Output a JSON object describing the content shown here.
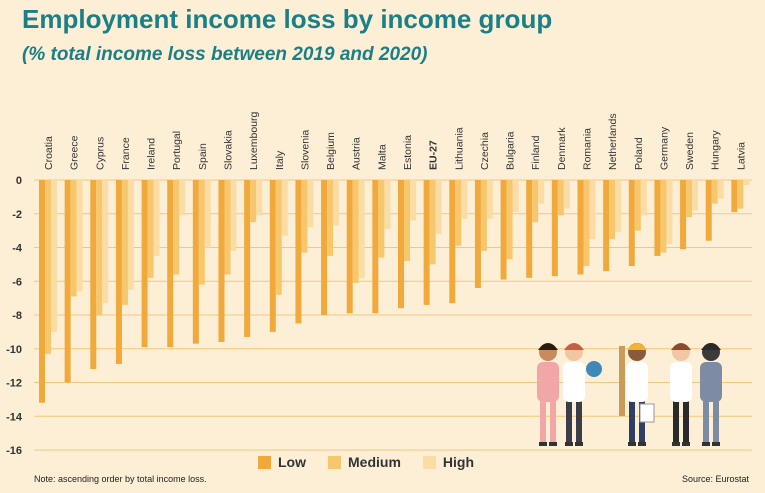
{
  "header": {
    "title": "Employment income loss by income group",
    "subtitle": "(% total income loss between 2019 and 2020)"
  },
  "footer": {
    "note": "Note: ascending order by total income loss.",
    "source": "Source: Eurostat"
  },
  "colors": {
    "low": "#f2a93b",
    "medium": "#f7c76d",
    "high": "#fbdca5",
    "grid": "#f3c77e",
    "axis_text": "#333333"
  },
  "chart_data": {
    "type": "bar",
    "title": "Employment income loss by income group",
    "subtitle": "(% total income loss between 2019 and 2020)",
    "xlabel": "",
    "ylabel": "",
    "ylim": [
      -16,
      0
    ],
    "yticks": [
      0,
      -2,
      -4,
      -6,
      -8,
      -10,
      -12,
      -14,
      -16
    ],
    "grid": true,
    "legend_position": "bottom",
    "categories": [
      "Croatia",
      "Greece",
      "Cyprus",
      "France",
      "Ireland",
      "Portugal",
      "Spain",
      "Slovakia",
      "Luxembourg",
      "Italy",
      "Slovenia",
      "Belgium",
      "Austria",
      "Malta",
      "Estonia",
      "EU-27",
      "Lithuania",
      "Czechia",
      "Bulgaria",
      "Finland",
      "Denmark",
      "Romania",
      "Netherlands",
      "Poland",
      "Germany",
      "Sweden",
      "Hungary",
      "Latvia"
    ],
    "series": [
      {
        "name": "Low",
        "values": [
          -13.2,
          -12.0,
          -11.2,
          -10.9,
          -9.9,
          -9.9,
          -9.7,
          -9.6,
          -9.3,
          -9.0,
          -8.5,
          -8.0,
          -7.9,
          -7.9,
          -7.6,
          -7.4,
          -7.3,
          -6.4,
          -5.9,
          -5.8,
          -5.7,
          -5.6,
          -5.4,
          -5.1,
          -4.5,
          -4.1,
          -3.6,
          -1.9
        ]
      },
      {
        "name": "Medium",
        "values": [
          -10.3,
          -6.9,
          -8.0,
          -7.4,
          -5.8,
          -5.6,
          -6.2,
          -5.6,
          -2.5,
          -6.8,
          -4.3,
          -4.5,
          -6.1,
          -4.6,
          -4.8,
          -5.0,
          -3.9,
          -4.2,
          -4.7,
          -2.5,
          -2.1,
          -5.1,
          -3.5,
          -3.0,
          -4.3,
          -2.2,
          -1.4,
          -1.7
        ]
      },
      {
        "name": "High",
        "values": [
          -9.0,
          -6.6,
          -7.3,
          -6.5,
          -4.5,
          -2.1,
          -4.0,
          -4.2,
          -2.1,
          -3.3,
          -2.8,
          -2.7,
          -5.8,
          -2.9,
          -2.4,
          -3.2,
          -2.3,
          -2.3,
          -1.9,
          -1.4,
          -1.7,
          -3.5,
          -3.1,
          -2.1,
          -3.8,
          -1.8,
          -1.1,
          -0.3
        ]
      }
    ]
  }
}
